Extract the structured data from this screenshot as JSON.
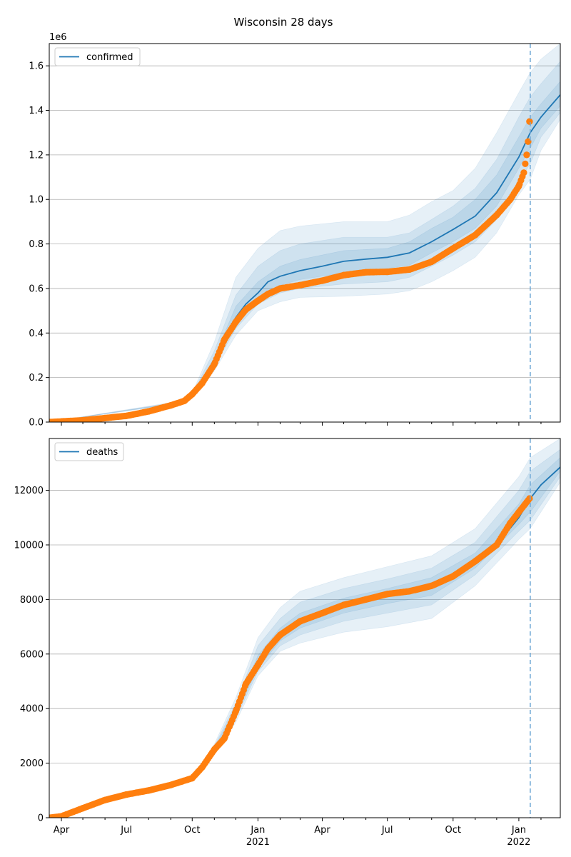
{
  "figure": {
    "title": "Wisconsin 28 days"
  },
  "colors": {
    "model_line": "#1f77b4",
    "band_fill": "#1f77b4",
    "observed_points": "#ff7f0e",
    "today_line": "#6fa8d6",
    "grid": "#b0b0b0",
    "axis": "#000000"
  },
  "chart_data": [
    {
      "type": "line",
      "panel": "confirmed",
      "title": "Wisconsin 28 days",
      "xlabel": "",
      "ylabel": "",
      "y_offset_label": "1e6",
      "xlim": [
        "2020-03-15",
        "2022-02-28"
      ],
      "ylim": [
        0,
        1700000
      ],
      "y_ticks": [
        0,
        200000,
        400000,
        600000,
        800000,
        1000000,
        1200000,
        1400000,
        1600000
      ],
      "y_tick_labels": [
        "0.0",
        "0.2",
        "0.4",
        "0.6",
        "0.8",
        "1.0",
        "1.2",
        "1.4",
        "1.6"
      ],
      "grid": "y",
      "legend": {
        "placement": "top-left",
        "entries": [
          "confirmed"
        ]
      },
      "today_marker": "2022-01-17",
      "series": [
        {
          "name": "confirmed",
          "kind": "model",
          "x": [
            "2020-03-15",
            "2020-05-01",
            "2020-06-01",
            "2020-07-01",
            "2020-08-01",
            "2020-09-01",
            "2020-09-20",
            "2020-10-01",
            "2020-10-15",
            "2020-11-01",
            "2020-11-15",
            "2020-12-01",
            "2020-12-15",
            "2021-01-01",
            "2021-01-15",
            "2021-02-01",
            "2021-03-01",
            "2021-04-01",
            "2021-05-01",
            "2021-06-01",
            "2021-07-01",
            "2021-08-01",
            "2021-09-01",
            "2021-10-01",
            "2021-11-01",
            "2021-12-01",
            "2022-01-01",
            "2022-01-17",
            "2022-02-01",
            "2022-02-28"
          ],
          "values": [
            0,
            8000,
            18000,
            28000,
            48000,
            75000,
            95000,
            120000,
            175000,
            270000,
            380000,
            470000,
            530000,
            580000,
            630000,
            655000,
            680000,
            700000,
            722000,
            732000,
            740000,
            760000,
            810000,
            865000,
            925000,
            1030000,
            1190000,
            1300000,
            1370000,
            1470000
          ]
        },
        {
          "name": "observed",
          "kind": "points",
          "x": [
            "2020-03-15",
            "2020-05-01",
            "2020-06-01",
            "2020-07-01",
            "2020-08-01",
            "2020-09-01",
            "2020-09-20",
            "2020-10-01",
            "2020-10-15",
            "2020-11-01",
            "2020-11-15",
            "2020-12-01",
            "2020-12-15",
            "2021-01-01",
            "2021-01-15",
            "2021-02-01",
            "2021-03-01",
            "2021-04-01",
            "2021-05-01",
            "2021-06-01",
            "2021-07-01",
            "2021-08-01",
            "2021-09-01",
            "2021-10-01",
            "2021-11-01",
            "2021-12-01",
            "2021-12-20",
            "2022-01-01",
            "2022-01-08",
            "2022-01-12",
            "2022-01-14",
            "2022-01-16"
          ],
          "values": [
            0,
            8000,
            18000,
            28000,
            48000,
            75000,
            95000,
            125000,
            175000,
            260000,
            370000,
            450000,
            505000,
            545000,
            575000,
            600000,
            615000,
            635000,
            660000,
            673000,
            675000,
            685000,
            720000,
            780000,
            840000,
            930000,
            1000000,
            1060000,
            1120000,
            1200000,
            1260000,
            1350000
          ]
        }
      ],
      "bands": [
        {
          "x": [
            "2020-03-15",
            "2020-09-15",
            "2020-10-01",
            "2020-11-01",
            "2020-12-01",
            "2021-01-01",
            "2021-02-01",
            "2021-03-01",
            "2021-05-01",
            "2021-07-01",
            "2021-08-01",
            "2021-09-01",
            "2021-10-01",
            "2021-11-01",
            "2021-12-01",
            "2022-01-01",
            "2022-01-17",
            "2022-02-01",
            "2022-02-28"
          ],
          "lower": [
            0,
            84000,
            108000,
            230000,
            390000,
            500000,
            540000,
            560000,
            565000,
            575000,
            590000,
            630000,
            680000,
            740000,
            850000,
            1020000,
            1090000,
            1220000,
            1360000
          ],
          "upper": [
            0,
            95000,
            130000,
            360000,
            650000,
            780000,
            860000,
            880000,
            900000,
            900000,
            930000,
            990000,
            1040000,
            1140000,
            1300000,
            1480000,
            1570000,
            1630000,
            1700000
          ]
        },
        {
          "x": [
            "2020-03-15",
            "2020-09-15",
            "2020-10-01",
            "2020-11-01",
            "2020-12-01",
            "2021-01-01",
            "2021-02-01",
            "2021-03-01",
            "2021-05-01",
            "2021-07-01",
            "2021-08-01",
            "2021-09-01",
            "2021-10-01",
            "2021-11-01",
            "2021-12-01",
            "2022-01-01",
            "2022-01-17",
            "2022-02-01",
            "2022-02-28"
          ],
          "lower": [
            0,
            86000,
            112000,
            250000,
            420000,
            530000,
            580000,
            600000,
            620000,
            630000,
            650000,
            700000,
            750000,
            810000,
            910000,
            1080000,
            1160000,
            1280000,
            1390000
          ],
          "upper": [
            0,
            92000,
            126000,
            320000,
            570000,
            700000,
            770000,
            800000,
            830000,
            830000,
            850000,
            910000,
            970000,
            1050000,
            1180000,
            1370000,
            1460000,
            1520000,
            1620000
          ]
        },
        {
          "x": [
            "2020-03-15",
            "2020-09-15",
            "2020-10-01",
            "2020-11-01",
            "2020-12-01",
            "2021-01-01",
            "2021-02-01",
            "2021-03-01",
            "2021-05-01",
            "2021-07-01",
            "2021-08-01",
            "2021-09-01",
            "2021-10-01",
            "2021-11-01",
            "2021-12-01",
            "2022-01-01",
            "2022-01-17",
            "2022-02-01",
            "2022-02-28"
          ],
          "lower": [
            0,
            88000,
            115000,
            270000,
            450000,
            560000,
            615000,
            640000,
            670000,
            690000,
            705000,
            760000,
            810000,
            870000,
            970000,
            1140000,
            1230000,
            1320000,
            1420000
          ],
          "upper": [
            0,
            90000,
            123000,
            290000,
            520000,
            630000,
            700000,
            730000,
            770000,
            780000,
            810000,
            870000,
            920000,
            1000000,
            1110000,
            1280000,
            1370000,
            1430000,
            1530000
          ]
        }
      ]
    },
    {
      "type": "line",
      "panel": "deaths",
      "xlabel": "",
      "ylabel": "",
      "xlim": [
        "2020-03-15",
        "2022-02-28"
      ],
      "ylim": [
        0,
        13900
      ],
      "y_ticks": [
        0,
        2000,
        4000,
        6000,
        8000,
        10000,
        12000
      ],
      "y_tick_labels": [
        "0",
        "2000",
        "4000",
        "6000",
        "8000",
        "10000",
        "12000"
      ],
      "x_tick_labels": [
        {
          "date": "2020-04-01",
          "label": "Apr",
          "year": ""
        },
        {
          "date": "2020-07-01",
          "label": "Jul",
          "year": ""
        },
        {
          "date": "2020-10-01",
          "label": "Oct",
          "year": ""
        },
        {
          "date": "2021-01-01",
          "label": "Jan",
          "year": "2021"
        },
        {
          "date": "2021-04-01",
          "label": "Apr",
          "year": ""
        },
        {
          "date": "2021-07-01",
          "label": "Jul",
          "year": ""
        },
        {
          "date": "2021-10-01",
          "label": "Oct",
          "year": ""
        },
        {
          "date": "2022-01-01",
          "label": "Jan",
          "year": "2022"
        }
      ],
      "grid": "y",
      "legend": {
        "placement": "top-left",
        "entries": [
          "deaths"
        ]
      },
      "today_marker": "2022-01-17",
      "series": [
        {
          "name": "deaths",
          "kind": "model",
          "x": [
            "2020-03-15",
            "2020-04-01",
            "2020-05-01",
            "2020-06-01",
            "2020-07-01",
            "2020-08-01",
            "2020-09-01",
            "2020-10-01",
            "2020-10-15",
            "2020-11-01",
            "2020-11-15",
            "2020-12-01",
            "2020-12-15",
            "2021-01-01",
            "2021-01-15",
            "2021-02-01",
            "2021-03-01",
            "2021-04-01",
            "2021-05-01",
            "2021-06-01",
            "2021-07-01",
            "2021-08-01",
            "2021-09-01",
            "2021-10-01",
            "2021-11-01",
            "2021-12-01",
            "2022-01-01",
            "2022-01-17",
            "2022-02-01",
            "2022-02-28"
          ],
          "values": [
            0,
            50,
            350,
            650,
            850,
            1000,
            1200,
            1450,
            1850,
            2500,
            2900,
            3900,
            4900,
            5600,
            6200,
            6700,
            7200,
            7500,
            7800,
            8000,
            8200,
            8350,
            8550,
            8850,
            9400,
            10000,
            11000,
            11700,
            12200,
            12850
          ]
        },
        {
          "name": "observed",
          "kind": "points",
          "x": [
            "2020-03-15",
            "2020-04-01",
            "2020-05-01",
            "2020-06-01",
            "2020-07-01",
            "2020-08-01",
            "2020-09-01",
            "2020-10-01",
            "2020-10-15",
            "2020-11-01",
            "2020-11-15",
            "2020-12-01",
            "2020-12-15",
            "2021-01-01",
            "2021-01-15",
            "2021-02-01",
            "2021-03-01",
            "2021-04-01",
            "2021-05-01",
            "2021-06-01",
            "2021-07-01",
            "2021-08-01",
            "2021-09-01",
            "2021-10-01",
            "2021-11-01",
            "2021-12-01",
            "2021-12-20",
            "2022-01-01",
            "2022-01-10",
            "2022-01-16"
          ],
          "values": [
            0,
            50,
            350,
            650,
            850,
            1000,
            1200,
            1450,
            1850,
            2500,
            2900,
            3900,
            4900,
            5600,
            6200,
            6700,
            7200,
            7500,
            7800,
            8000,
            8200,
            8300,
            8500,
            8850,
            9400,
            10000,
            10800,
            11200,
            11500,
            11700
          ]
        }
      ],
      "bands": [
        {
          "x": [
            "2020-03-15",
            "2020-10-01",
            "2020-11-01",
            "2020-12-01",
            "2021-01-01",
            "2021-02-01",
            "2021-03-01",
            "2021-05-01",
            "2021-07-01",
            "2021-09-01",
            "2021-11-01",
            "2022-01-01",
            "2022-01-17",
            "2022-02-28"
          ],
          "lower": [
            0,
            1450,
            2300,
            3500,
            5200,
            6100,
            6400,
            6800,
            7000,
            7300,
            8500,
            10200,
            10600,
            12300
          ],
          "upper": [
            0,
            1450,
            2700,
            4400,
            6600,
            7700,
            8300,
            8800,
            9200,
            9600,
            10600,
            12500,
            13200,
            13900
          ]
        },
        {
          "x": [
            "2020-03-15",
            "2020-10-01",
            "2020-11-01",
            "2020-12-01",
            "2021-01-01",
            "2021-02-01",
            "2021-03-01",
            "2021-05-01",
            "2021-07-01",
            "2021-09-01",
            "2021-11-01",
            "2022-01-01",
            "2022-01-17",
            "2022-02-28"
          ],
          "lower": [
            0,
            1450,
            2380,
            3650,
            5350,
            6300,
            6700,
            7200,
            7500,
            7800,
            8900,
            10500,
            10900,
            12500
          ],
          "upper": [
            0,
            1450,
            2620,
            4200,
            6300,
            7300,
            7900,
            8400,
            8750,
            9150,
            10100,
            12000,
            12700,
            13500
          ]
        },
        {
          "x": [
            "2020-03-15",
            "2020-10-01",
            "2020-11-01",
            "2020-12-01",
            "2021-01-01",
            "2021-02-01",
            "2021-03-01",
            "2021-05-01",
            "2021-07-01",
            "2021-09-01",
            "2021-11-01",
            "2022-01-01",
            "2022-01-17",
            "2022-02-28"
          ],
          "lower": [
            0,
            1450,
            2440,
            3780,
            5480,
            6480,
            6950,
            7500,
            7850,
            8150,
            9150,
            10750,
            11200,
            12700
          ],
          "upper": [
            0,
            1450,
            2560,
            4050,
            5950,
            6950,
            7500,
            8050,
            8400,
            8800,
            9700,
            11500,
            12200,
            13200
          ]
        }
      ]
    }
  ]
}
